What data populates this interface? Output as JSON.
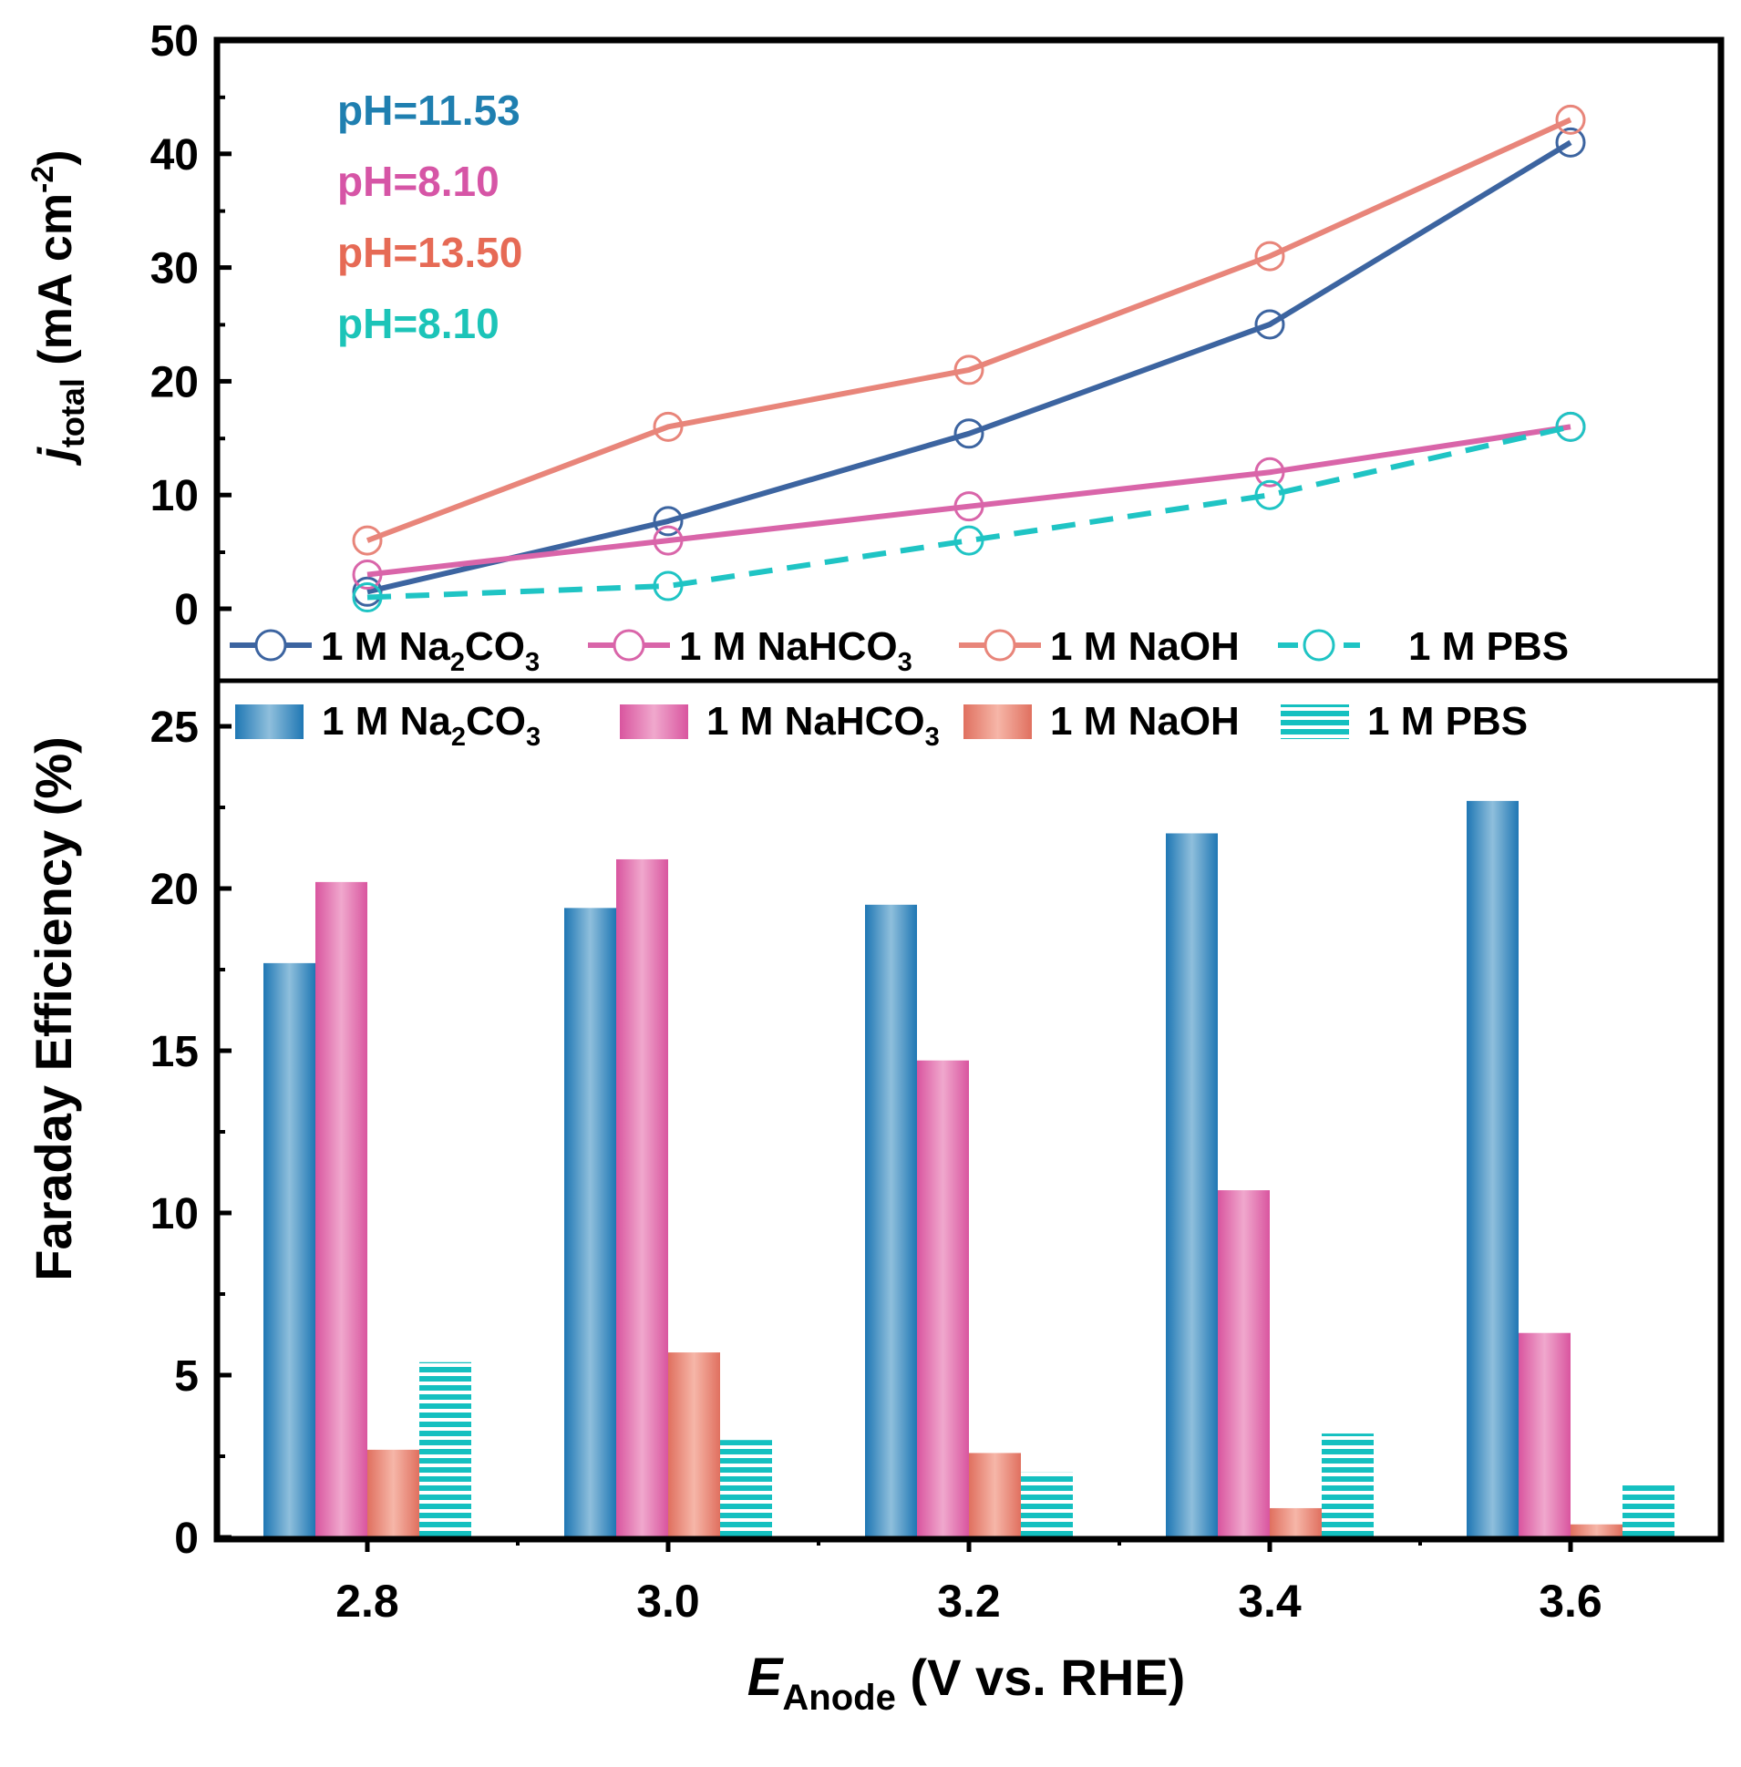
{
  "chart_data": [
    {
      "type": "line",
      "x": [
        2.8,
        3.0,
        3.2,
        3.4,
        3.6
      ],
      "ylim": [
        0,
        50
      ],
      "yticks": [
        "0",
        "10",
        "20",
        "30",
        "40",
        "50"
      ],
      "ylabel": {
        "main": "j",
        "sub": "total",
        "unit": " (mA cm",
        "sup": "-2",
        "close": ")"
      },
      "series": [
        {
          "name": {
            "prefix": "1 M Na",
            "sub1": "2",
            "mid": "CO",
            "sub2": "3"
          },
          "values": [
            1.5,
            7.7,
            15.4,
            25.0,
            41.0
          ],
          "color": "#3c64a0",
          "dashed": false
        },
        {
          "name": {
            "prefix": "1 M NaHCO",
            "sub1": "3",
            "mid": "",
            "sub2": ""
          },
          "values": [
            3.0,
            6.0,
            9.0,
            12.0,
            16.0
          ],
          "color": "#d965a9",
          "dashed": false
        },
        {
          "name": {
            "prefix": "1 M NaOH",
            "sub1": "",
            "mid": "",
            "sub2": ""
          },
          "values": [
            6.0,
            16.0,
            21.0,
            31.0,
            43.0
          ],
          "color": "#e8857a",
          "dashed": false
        },
        {
          "name": {
            "prefix": "1 M PBS",
            "sub1": "",
            "mid": "",
            "sub2": ""
          },
          "values": [
            1.0,
            2.0,
            6.0,
            10.0,
            16.0
          ],
          "color": "#1fc4c4",
          "dashed": true
        }
      ],
      "annotations": [
        {
          "text": "pH=11.53",
          "color": "#1f7fb0"
        },
        {
          "text": "pH=8.10",
          "color": "#d655a6"
        },
        {
          "text": "pH=13.50",
          "color": "#e66a55"
        },
        {
          "text": "pH=8.10",
          "color": "#1cc4b8"
        }
      ],
      "legend_position": "bottom"
    },
    {
      "type": "bar",
      "categories": [
        "2.8",
        "3.0",
        "3.2",
        "3.4",
        "3.6"
      ],
      "ylim": [
        0,
        26.5
      ],
      "yticks": [
        "0",
        "5",
        "10",
        "15",
        "20",
        "25"
      ],
      "ylabel": "Faraday Efficiency (%)",
      "xlabel": {
        "main": "E",
        "sub": "Anode",
        "rest": " (V vs. RHE)"
      },
      "series": [
        {
          "name": {
            "prefix": "1 M Na",
            "sub1": "2",
            "mid": "CO",
            "sub2": "3"
          },
          "values": [
            17.7,
            19.4,
            19.5,
            21.7,
            22.7
          ],
          "color": "#2a7fb5",
          "style": "gradient-blue"
        },
        {
          "name": {
            "prefix": "1 M NaHCO",
            "sub1": "3",
            "mid": "",
            "sub2": ""
          },
          "values": [
            20.2,
            20.9,
            14.7,
            10.7,
            6.3
          ],
          "color": "#df6aa9",
          "style": "gradient-pink"
        },
        {
          "name": {
            "prefix": "1 M NaOH",
            "sub1": "",
            "mid": "",
            "sub2": ""
          },
          "values": [
            2.7,
            5.7,
            2.6,
            0.9,
            0.4
          ],
          "color": "#e57f6f",
          "style": "gradient-salmon"
        },
        {
          "name": {
            "prefix": "1 M PBS",
            "sub1": "",
            "mid": "",
            "sub2": ""
          },
          "values": [
            5.4,
            3.0,
            2.0,
            3.2,
            1.6
          ],
          "color": "#17c2c2",
          "style": "stripes-teal"
        }
      ],
      "legend_position": "top"
    }
  ]
}
